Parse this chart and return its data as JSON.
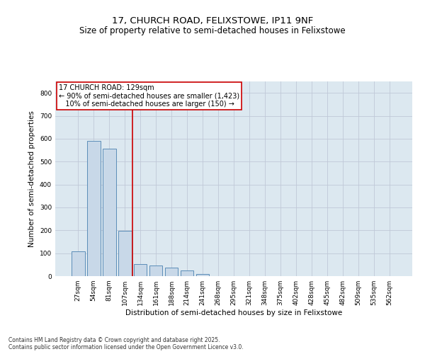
{
  "title_line1": "17, CHURCH ROAD, FELIXSTOWE, IP11 9NF",
  "title_line2": "Size of property relative to semi-detached houses in Felixstowe",
  "xlabel": "Distribution of semi-detached houses by size in Felixstowe",
  "ylabel": "Number of semi-detached properties",
  "categories": [
    "27sqm",
    "54sqm",
    "81sqm",
    "107sqm",
    "134sqm",
    "161sqm",
    "188sqm",
    "214sqm",
    "241sqm",
    "268sqm",
    "295sqm",
    "321sqm",
    "348sqm",
    "375sqm",
    "402sqm",
    "428sqm",
    "455sqm",
    "482sqm",
    "509sqm",
    "535sqm",
    "562sqm"
  ],
  "values": [
    107,
    590,
    555,
    197,
    52,
    46,
    38,
    25,
    8,
    0,
    0,
    0,
    0,
    0,
    0,
    0,
    0,
    0,
    0,
    0,
    0
  ],
  "bar_color": "#c8d8e8",
  "bar_edge_color": "#5b8db8",
  "vline_pos": 3.5,
  "vline_color": "#cc0000",
  "annotation_text": "17 CHURCH ROAD: 129sqm\n← 90% of semi-detached houses are smaller (1,423)\n   10% of semi-detached houses are larger (150) →",
  "annotation_box_color": "#ffffff",
  "annotation_box_edge_color": "#cc0000",
  "ylim": [
    0,
    850
  ],
  "yticks": [
    0,
    100,
    200,
    300,
    400,
    500,
    600,
    700,
    800
  ],
  "grid_color": "#c0c8d8",
  "bg_color": "#dce8f0",
  "footer_text": "Contains HM Land Registry data © Crown copyright and database right 2025.\nContains public sector information licensed under the Open Government Licence v3.0.",
  "title_fontsize": 9.5,
  "subtitle_fontsize": 8.5,
  "tick_fontsize": 6.5,
  "ylabel_fontsize": 7.5,
  "xlabel_fontsize": 7.5,
  "annotation_fontsize": 7.0,
  "footer_fontsize": 5.5
}
